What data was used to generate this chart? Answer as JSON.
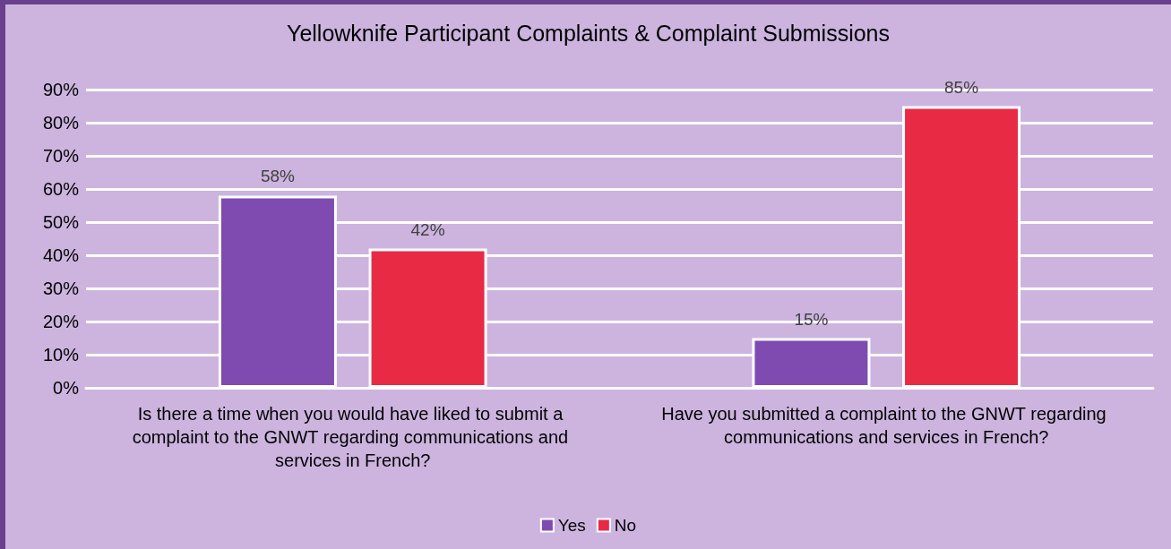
{
  "chart_data": {
    "type": "bar",
    "title": "Yellowknife Participant Complaints & Complaint Submissions",
    "categories": [
      "Is there a time when you would have liked to submit a complaint to the GNWT regarding communications and services in French?",
      "Have you submitted a complaint to the GNWT regarding communications and services in French?"
    ],
    "series": [
      {
        "name": "Yes",
        "color": "#7f4bb0",
        "values": [
          58,
          15
        ],
        "value_labels": [
          "58%",
          "15%"
        ]
      },
      {
        "name": "No",
        "color": "#e82a45",
        "values": [
          42,
          85
        ],
        "value_labels": [
          "42%",
          "85%"
        ]
      }
    ],
    "ylim": [
      0,
      90
    ],
    "yticks": [
      {
        "value": 0,
        "label": "0%"
      },
      {
        "value": 10,
        "label": "10%"
      },
      {
        "value": 20,
        "label": "20%"
      },
      {
        "value": 30,
        "label": "30%"
      },
      {
        "value": 40,
        "label": "40%"
      },
      {
        "value": 50,
        "label": "50%"
      },
      {
        "value": 60,
        "label": "60%"
      },
      {
        "value": 70,
        "label": "70%"
      },
      {
        "value": 80,
        "label": "80%"
      },
      {
        "value": 90,
        "label": "90%"
      }
    ],
    "grid": true,
    "legend": "bottom"
  }
}
